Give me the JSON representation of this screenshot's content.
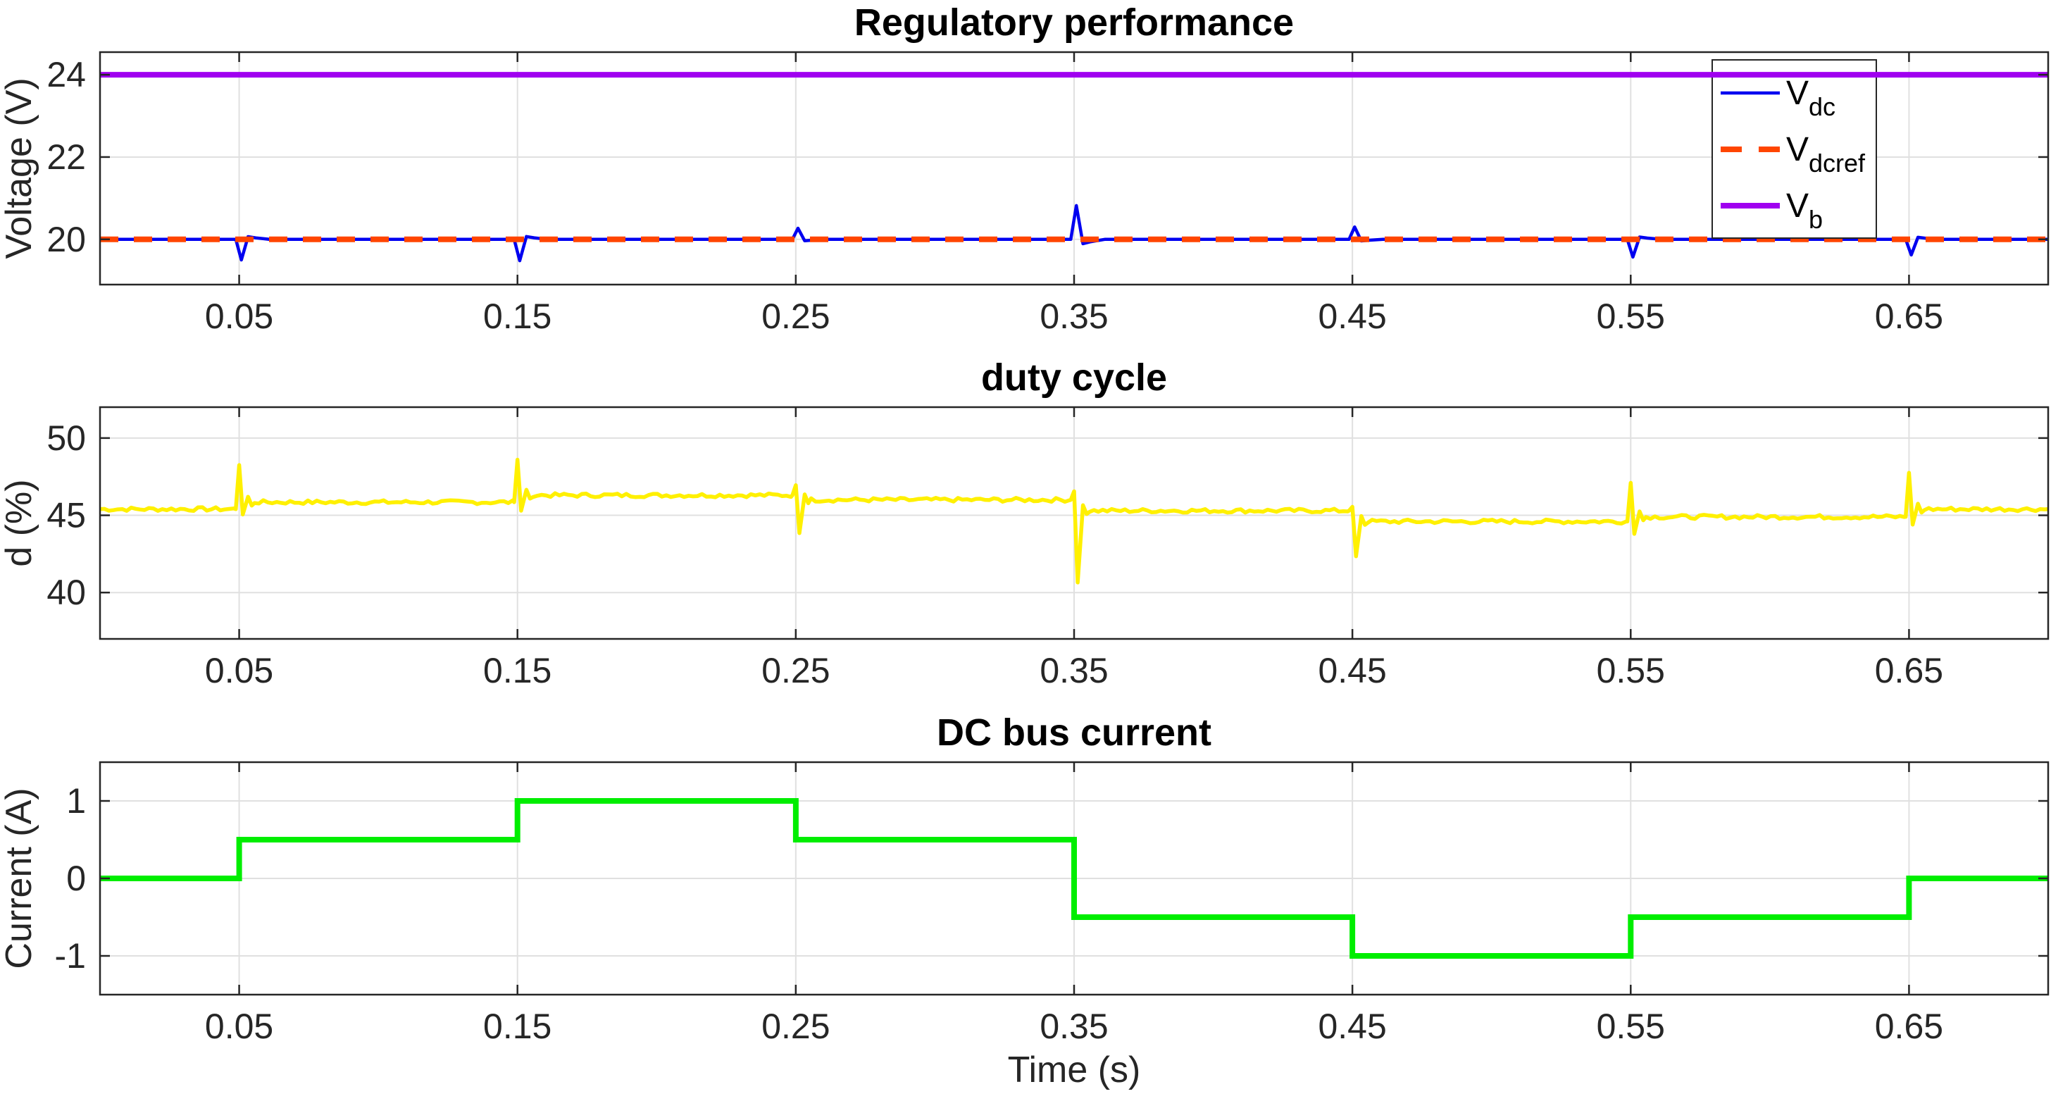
{
  "figure": {
    "background": "#FFFFFF",
    "axis_color": "#262626",
    "grid_color": "#E0E0E0",
    "title_color": "#000000",
    "tick_label_color": "#262626",
    "xlim": [
      0,
      0.7
    ],
    "x_ticks": [
      0.05,
      0.15,
      0.25,
      0.35,
      0.45,
      0.55,
      0.65
    ],
    "x_tick_labels": [
      "0.05",
      "0.15",
      "0.25",
      "0.35",
      "0.45",
      "0.55",
      "0.65"
    ]
  },
  "chart_data": [
    {
      "type": "line",
      "title": "Regulatory performance",
      "ylabel": "Voltage (V)",
      "xlabel": "",
      "xlim": [
        0,
        0.7
      ],
      "ylim": [
        18.9,
        24.55
      ],
      "y_ticks": [
        20,
        22,
        24
      ],
      "y_tick_labels": [
        "20",
        "22",
        "24"
      ],
      "grid": true,
      "legend": {
        "position": "northeast",
        "entries": [
          {
            "label_main": "V",
            "label_sub": "dc",
            "color": "#0000F0",
            "line_style": "solid"
          },
          {
            "label_main": "V",
            "label_sub": "dcref",
            "color": "#FF4500",
            "line_style": "dashed"
          },
          {
            "label_main": "V",
            "label_sub": "b",
            "color": "#A000F0",
            "line_style": "solid"
          }
        ]
      },
      "series": [
        {
          "name": "V_dc",
          "color": "#0000F0",
          "line_style": "solid",
          "width": 4.5,
          "baseline": 20,
          "transient_events": [
            {
              "t": 0.05,
              "peak": 19.5
            },
            {
              "t": 0.15,
              "peak": 19.48
            },
            {
              "t": 0.25,
              "peak": 20.27
            },
            {
              "t": 0.35,
              "peak": 20.82
            },
            {
              "t": 0.45,
              "peak": 20.3
            },
            {
              "t": 0.55,
              "peak": 19.57
            },
            {
              "t": 0.65,
              "peak": 19.62
            }
          ]
        },
        {
          "name": "V_dcref",
          "color": "#FF4500",
          "line_style": "dashed",
          "width": 8,
          "constant_value": 20
        },
        {
          "name": "V_b",
          "color": "#A000F0",
          "line_style": "solid",
          "width": 8,
          "constant_value": 24
        }
      ]
    },
    {
      "type": "line",
      "title": "duty cycle",
      "ylabel": "d (%)",
      "xlabel": "",
      "xlim": [
        0,
        0.7
      ],
      "ylim": [
        37,
        52
      ],
      "y_ticks": [
        40,
        45,
        50
      ],
      "y_tick_labels": [
        "40",
        "45",
        "50"
      ],
      "grid": true,
      "series": [
        {
          "name": "d",
          "color": "#FFF000",
          "line_style": "solid",
          "width": 5.5,
          "noise_amplitude": 0.13,
          "segment_means": [
            {
              "t0": 0.0,
              "t1": 0.05,
              "mean": 45.4
            },
            {
              "t0": 0.05,
              "t1": 0.15,
              "mean": 45.85
            },
            {
              "t0": 0.15,
              "t1": 0.25,
              "mean": 46.3
            },
            {
              "t0": 0.25,
              "t1": 0.35,
              "mean": 46.0
            },
            {
              "t0": 0.35,
              "t1": 0.45,
              "mean": 45.3
            },
            {
              "t0": 0.45,
              "t1": 0.55,
              "mean": 44.6
            },
            {
              "t0": 0.55,
              "t1": 0.65,
              "mean": 44.9
            },
            {
              "t0": 0.65,
              "t1": 0.7,
              "mean": 45.4
            }
          ],
          "transition_spikes": [
            {
              "t": 0.05,
              "up": 48.25,
              "down": 45.05
            },
            {
              "t": 0.15,
              "up": 48.6,
              "down": 45.3
            },
            {
              "t": 0.25,
              "up": 46.95,
              "down": 43.85
            },
            {
              "t": 0.35,
              "up": 46.55,
              "down": 40.65
            },
            {
              "t": 0.45,
              "up": 45.55,
              "down": 42.35
            },
            {
              "t": 0.55,
              "up": 47.1,
              "down": 43.8
            },
            {
              "t": 0.65,
              "up": 47.75,
              "down": 44.4
            }
          ]
        }
      ]
    },
    {
      "type": "line",
      "title": "DC bus current",
      "ylabel": "Current (A)",
      "xlabel": "Time (s)",
      "xlim": [
        0,
        0.7
      ],
      "ylim": [
        -1.5,
        1.5
      ],
      "y_ticks": [
        -1,
        0,
        1
      ],
      "y_tick_labels": [
        "-1",
        "0",
        "1"
      ],
      "grid": true,
      "series": [
        {
          "name": "DC bus current",
          "color": "#00EE00",
          "line_style": "solid",
          "width": 8,
          "step": true,
          "breakpoints": [
            0.05,
            0.15,
            0.25,
            0.35,
            0.45,
            0.55,
            0.65
          ],
          "levels": [
            0,
            0.5,
            1,
            0.5,
            -0.5,
            -1,
            -0.5,
            0
          ]
        }
      ]
    }
  ]
}
